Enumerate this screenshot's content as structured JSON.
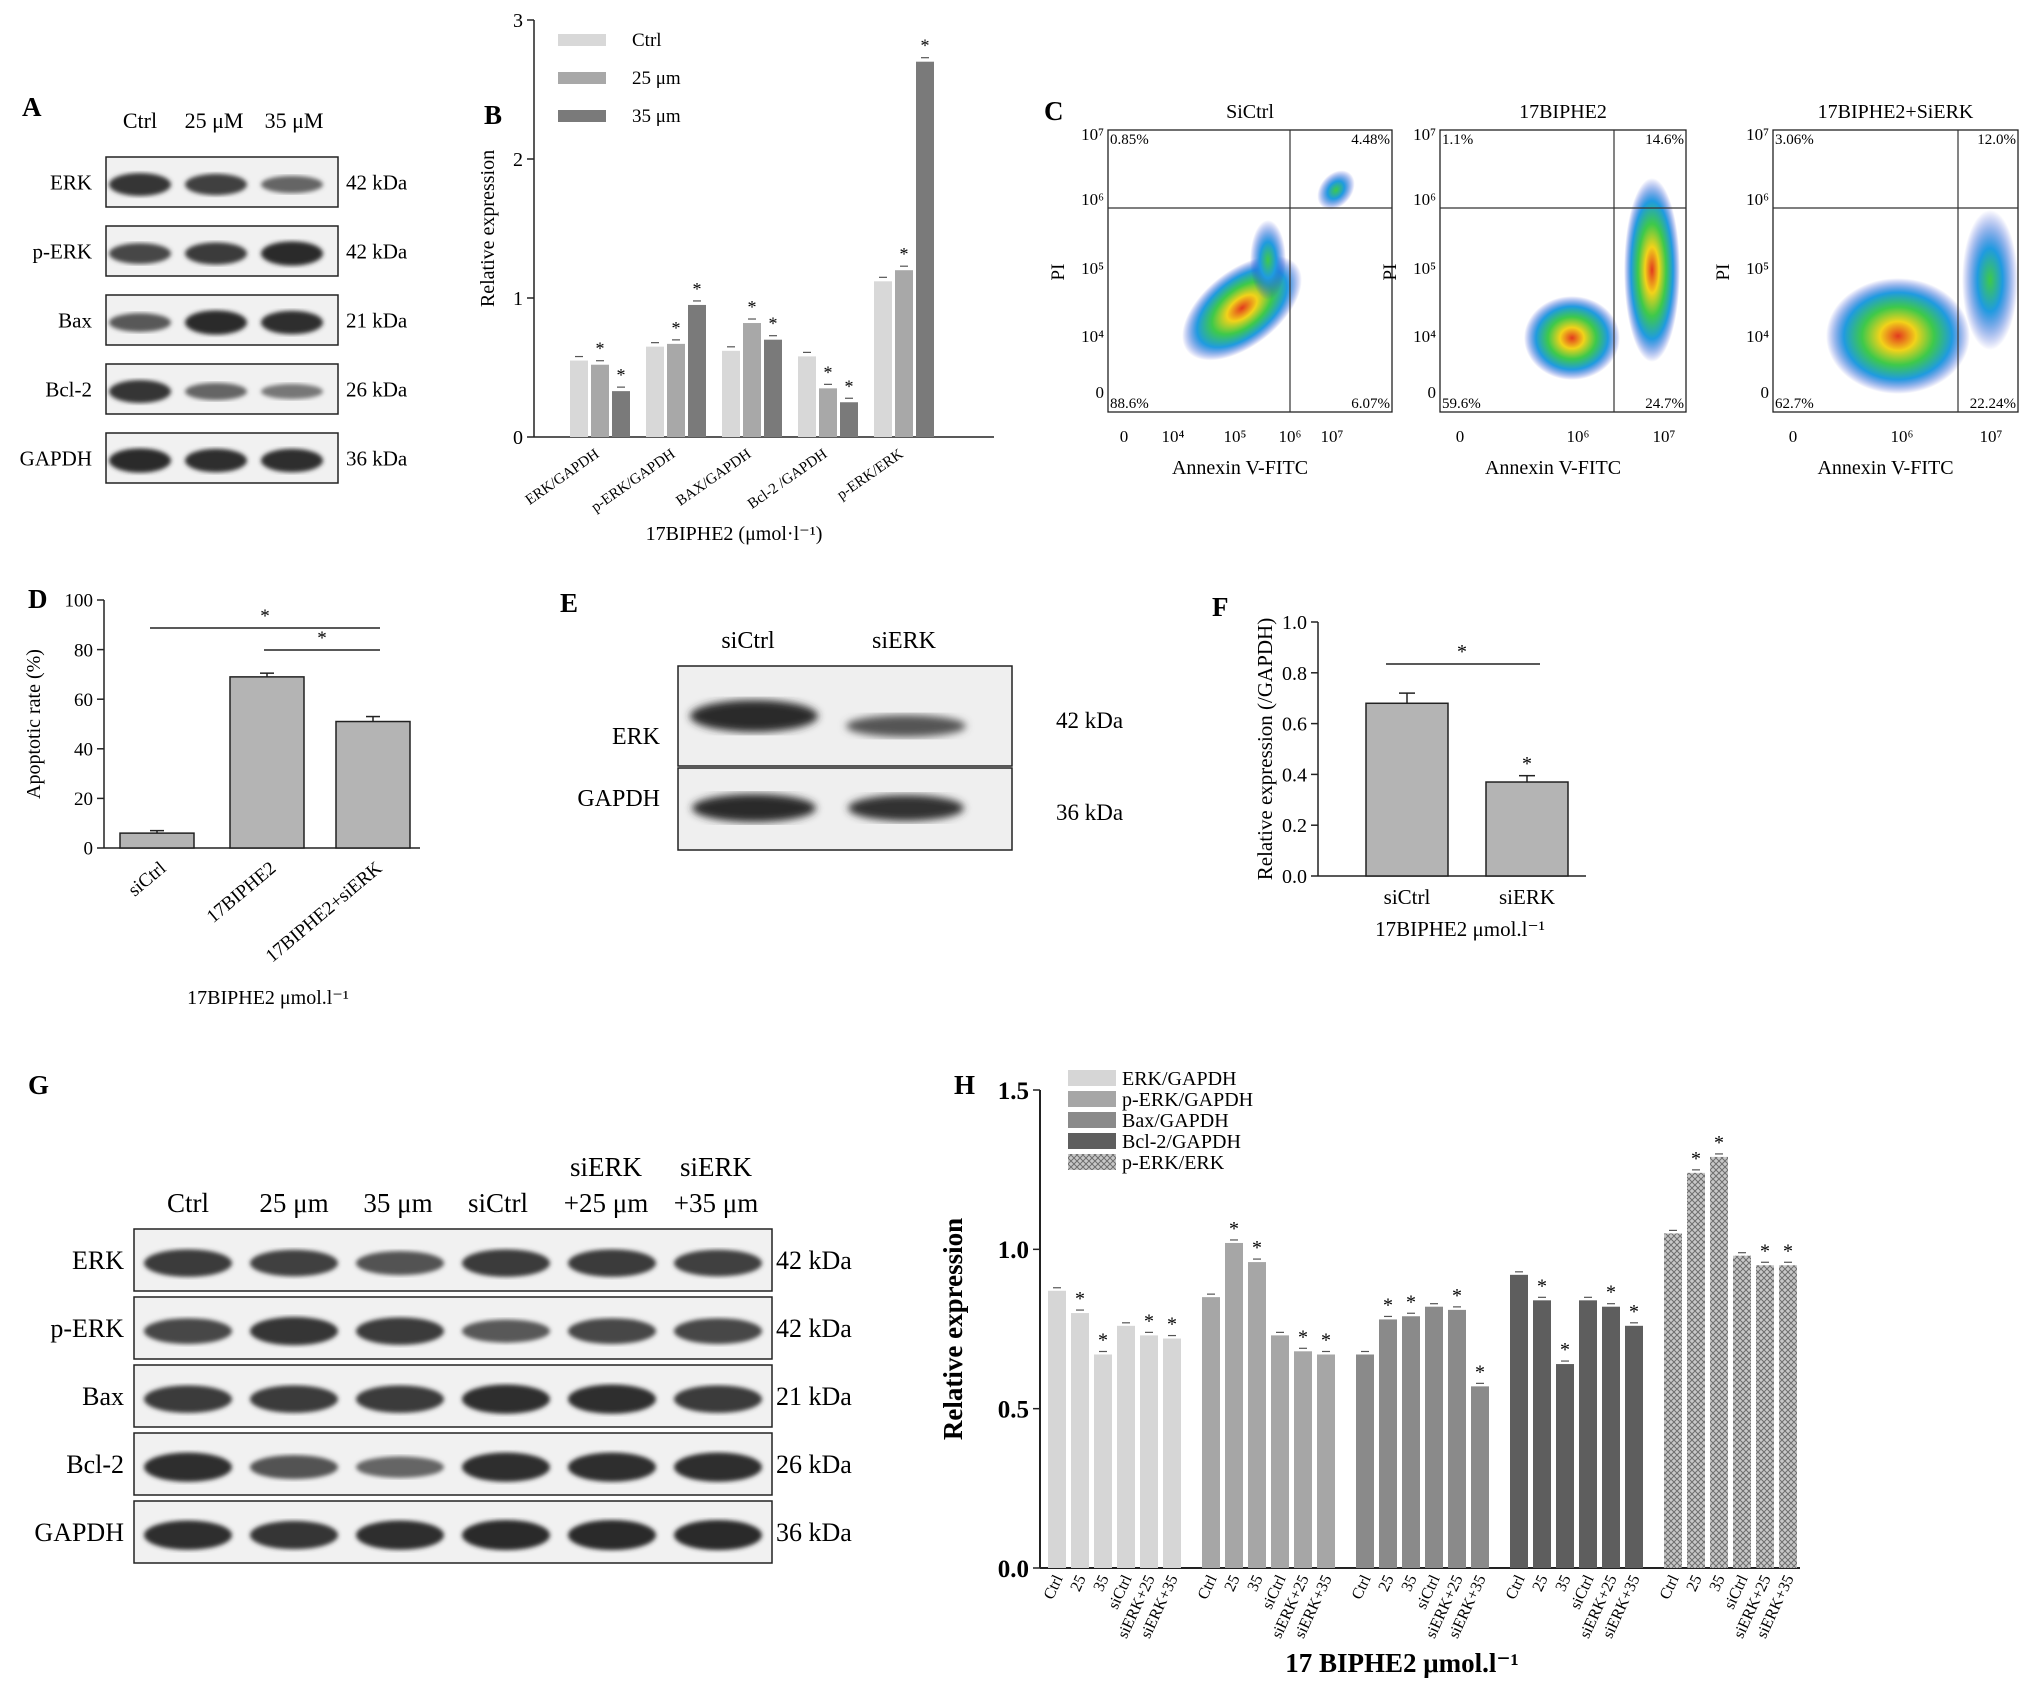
{
  "panels": {
    "A": {
      "letter": "A",
      "lanes": [
        "Ctrl",
        "25 μM",
        "35 μM"
      ],
      "rows": [
        {
          "name": "ERK",
          "kda": "42 kDa",
          "intensity": [
            0.85,
            0.75,
            0.45
          ]
        },
        {
          "name": "p-ERK",
          "kda": "42 kDa",
          "intensity": [
            0.7,
            0.8,
            0.95
          ]
        },
        {
          "name": "Bax",
          "kda": "21 kDa",
          "intensity": [
            0.55,
            0.95,
            0.9
          ]
        },
        {
          "name": "Bcl-2",
          "kda": "26 kDa",
          "intensity": [
            0.85,
            0.45,
            0.3
          ]
        },
        {
          "name": "GAPDH",
          "kda": "36 kDa",
          "intensity": [
            0.95,
            0.9,
            0.9
          ]
        }
      ]
    },
    "B": {
      "letter": "B",
      "chart_data": {
        "type": "bar",
        "categories": [
          "ERK/GAPDH",
          "p-ERK/GAPDH",
          "BAX/GAPDH",
          "Bcl-2 /GAPDH",
          "p-ERK/ERK"
        ],
        "series": [
          {
            "name": "Ctrl",
            "values": [
              0.55,
              0.65,
              0.62,
              0.58,
              1.12
            ],
            "color": "#d8d8d8",
            "sig": [
              false,
              false,
              false,
              false,
              false
            ]
          },
          {
            "name": "25 μm",
            "values": [
              0.52,
              0.67,
              0.82,
              0.35,
              1.2
            ],
            "color": "#a8a8a8",
            "sig": [
              true,
              true,
              true,
              true,
              true
            ]
          },
          {
            "name": "35 μm",
            "values": [
              0.33,
              0.95,
              0.7,
              0.25,
              2.7
            ],
            "color": "#7a7a7a",
            "sig": [
              true,
              true,
              true,
              true,
              true
            ]
          }
        ],
        "ylabel": "Relative expression",
        "xlabel": "17BIPHE2 (μmol·l⁻¹)",
        "yticks": [
          "0",
          "1",
          "2",
          "3"
        ],
        "ylim": [
          0,
          3
        ],
        "legend_position": "top-left"
      }
    },
    "C": {
      "letter": "C",
      "plots": [
        {
          "title": "SiCtrl",
          "q_ul": "0.85%",
          "q_ur": "4.48%",
          "q_ll": "88.6%",
          "q_lr": "6.07%",
          "xticks": [
            "0",
            "10⁴",
            "10⁵",
            "10⁶",
            "10⁷"
          ]
        },
        {
          "title": "17BIPHE2",
          "q_ul": "1.1%",
          "q_ur": "14.6%",
          "q_ll": "59.6%",
          "q_lr": "24.7%",
          "xticks": [
            "0",
            "10⁶",
            "10⁷"
          ]
        },
        {
          "title": "17BIPHE2+SiERK",
          "q_ul": "3.06%",
          "q_ur": "12.0%",
          "q_ll": "62.7%",
          "q_lr": "22.24%",
          "xticks": [
            "0",
            "10⁶",
            "10⁷"
          ]
        }
      ],
      "yticks": [
        "10⁷",
        "10⁶",
        "10⁵",
        "10⁴",
        "0"
      ],
      "ylabel": "PI",
      "xlabel": "Annexin V-FITC"
    },
    "D": {
      "letter": "D",
      "chart_data": {
        "type": "bar",
        "categories": [
          "siCtrl",
          "17BIPHE2",
          "17BIPHE2+siERK"
        ],
        "values": [
          6,
          69,
          51
        ],
        "errors": [
          1,
          1.5,
          2
        ],
        "ylabel": "Apoptotic rate (%)",
        "xlabel": "17BIPHE2 μmol.l⁻¹",
        "yticks": [
          "0",
          "20",
          "40",
          "60",
          "80",
          "100"
        ],
        "ylim": [
          0,
          100
        ],
        "sig_marker": "*"
      }
    },
    "E": {
      "letter": "E",
      "lanes": [
        "siCtrl",
        "siERK"
      ],
      "rows": [
        {
          "name": "ERK",
          "kda": "42 kDa"
        },
        {
          "name": "GAPDH",
          "kda": "36 kDa"
        }
      ]
    },
    "F": {
      "letter": "F",
      "chart_data": {
        "type": "bar",
        "categories": [
          "siCtrl",
          "siERK"
        ],
        "values": [
          0.68,
          0.37
        ],
        "errors": [
          0.04,
          0.025
        ],
        "ylabel": "Relative expression (/GAPDH)",
        "xlabel": "17BIPHE2 μmol.l⁻¹",
        "yticks": [
          "0.0",
          "0.2",
          "0.4",
          "0.6",
          "0.8",
          "1.0"
        ],
        "ylim": [
          0,
          1
        ],
        "sig_marker": "*"
      }
    },
    "G": {
      "letter": "G",
      "lanes": [
        [
          "Ctrl"
        ],
        [
          "25 μm"
        ],
        [
          "35 μm"
        ],
        [
          "siCtrl"
        ],
        [
          "siERK",
          "+25 μm"
        ],
        [
          "siERK",
          "+35 μm"
        ]
      ],
      "rows": [
        {
          "name": "ERK",
          "kda": "42 kDa",
          "intensity": [
            0.8,
            0.75,
            0.6,
            0.8,
            0.8,
            0.75
          ]
        },
        {
          "name": "p-ERK",
          "kda": "42 kDa",
          "intensity": [
            0.7,
            0.85,
            0.8,
            0.55,
            0.7,
            0.7
          ]
        },
        {
          "name": "Bax",
          "kda": "21 kDa",
          "intensity": [
            0.8,
            0.8,
            0.8,
            0.9,
            0.9,
            0.8
          ]
        },
        {
          "name": "Bcl-2",
          "kda": "26 kDa",
          "intensity": [
            0.9,
            0.6,
            0.45,
            0.9,
            0.9,
            0.9
          ]
        },
        {
          "name": "GAPDH",
          "kda": "36 kDa",
          "intensity": [
            0.9,
            0.85,
            0.9,
            0.95,
            0.95,
            0.95
          ]
        }
      ]
    },
    "H": {
      "letter": "H",
      "chart_data": {
        "type": "bar",
        "categories": [
          "Ctrl",
          "25",
          "35",
          "siCtrl",
          "siERK+25",
          "siERK+35"
        ],
        "series": [
          {
            "name": "ERK/GAPDH",
            "values": [
              0.87,
              0.8,
              0.67,
              0.76,
              0.73,
              0.72
            ],
            "color": "#d6d6d6",
            "sig": [
              false,
              true,
              true,
              false,
              true,
              true
            ]
          },
          {
            "name": "p-ERK/GAPDH",
            "values": [
              0.85,
              1.02,
              0.96,
              0.73,
              0.68,
              0.67
            ],
            "color": "#a6a6a6",
            "sig": [
              false,
              true,
              true,
              false,
              true,
              true
            ]
          },
          {
            "name": "Bax/GAPDH",
            "values": [
              0.67,
              0.78,
              0.79,
              0.82,
              0.81,
              0.57
            ],
            "color": "#8a8a8a",
            "sig": [
              false,
              true,
              true,
              false,
              true,
              true
            ]
          },
          {
            "name": "Bcl-2/GAPDH",
            "values": [
              0.92,
              0.84,
              0.64,
              0.84,
              0.82,
              0.76
            ],
            "color": "#5e5e5e",
            "sig": [
              false,
              true,
              true,
              false,
              true,
              true
            ]
          },
          {
            "name": "p-ERK/ERK",
            "values": [
              1.05,
              1.24,
              1.29,
              0.98,
              0.95,
              0.95
            ],
            "color": "#b8b8b8",
            "sig": [
              false,
              true,
              true,
              false,
              true,
              true
            ]
          }
        ],
        "ylabel": "Relative expression",
        "xlabel": "17 BIPHE2 μmol.l⁻¹",
        "yticks": [
          "0.0",
          "0.5",
          "1.0",
          "1.5"
        ],
        "ylim": [
          0,
          1.5
        ],
        "legend_position": "top-left"
      }
    }
  }
}
